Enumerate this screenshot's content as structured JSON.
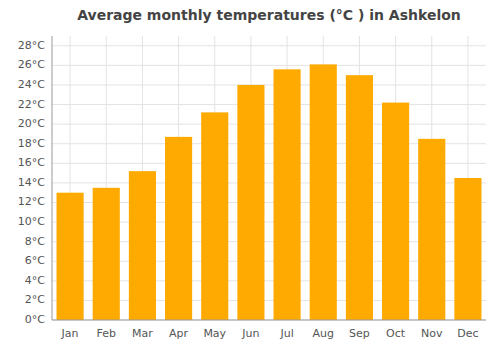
{
  "chart_data": {
    "type": "bar",
    "title": "Average monthly temperatures (°C ) in Ashkelon",
    "categories": [
      "Jan",
      "Feb",
      "Mar",
      "Apr",
      "May",
      "Jun",
      "Jul",
      "Aug",
      "Sep",
      "Oct",
      "Nov",
      "Dec"
    ],
    "values": [
      13.0,
      13.5,
      15.2,
      18.7,
      21.2,
      24.0,
      25.6,
      26.1,
      25.0,
      22.2,
      18.5,
      14.5
    ],
    "color": "#FFAA00",
    "ylim": [
      0,
      29
    ],
    "yticks": [
      {
        "value": 0,
        "label": "0°C"
      },
      {
        "value": 2,
        "label": "2°C"
      },
      {
        "value": 4,
        "label": "4°C"
      },
      {
        "value": 6,
        "label": "6°C"
      },
      {
        "value": 8,
        "label": "8°C"
      },
      {
        "value": 10,
        "label": "10°C"
      },
      {
        "value": 12,
        "label": "12°C"
      },
      {
        "value": 14,
        "label": "14°C"
      },
      {
        "value": 16,
        "label": "16°C"
      },
      {
        "value": 18,
        "label": "18°C"
      },
      {
        "value": 20,
        "label": "20°C"
      },
      {
        "value": 22,
        "label": "22°C"
      },
      {
        "value": 24,
        "label": "24°C"
      },
      {
        "value": 26,
        "label": "26°C"
      },
      {
        "value": 28,
        "label": "28°C"
      }
    ],
    "grid": true
  }
}
